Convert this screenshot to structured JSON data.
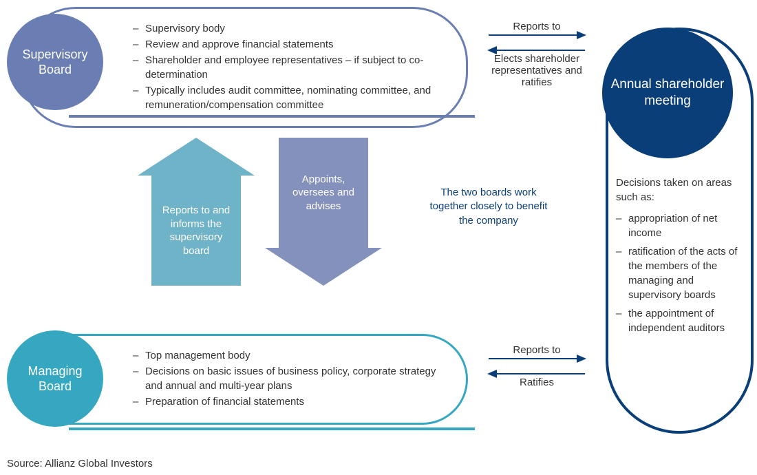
{
  "colors": {
    "supervisory_border": "#6a7eb3",
    "supervisory_fill": "#6a7eb3",
    "managing_border": "#35a7c0",
    "managing_fill": "#35a7c0",
    "annual_border": "#0a3e78",
    "annual_fill": "#0a3e78",
    "up_arrow_fill": "#6fb3c9",
    "down_arrow_fill": "#8591bd",
    "small_arrow": "#0a3e78",
    "note_text": "#0a3e78",
    "body_text": "#333333",
    "underline_sup": "#6a7eb3",
    "underline_man": "#35a7c0"
  },
  "supervisory": {
    "title": "Supervisory Board",
    "items": [
      "Supervisory body",
      "Review and approve financial statements",
      "Shareholder and employee representatives – if subject to co-determination",
      "Typically includes audit committee, nominating committee, and remuneration/compensation committee"
    ]
  },
  "managing": {
    "title": "Managing Board",
    "items": [
      "Top management body",
      "Decisions on basic issues of business policy, corporate strategy and annual and multi-year plans",
      "Preparation of financial statements"
    ]
  },
  "big_arrows": {
    "up_text": "Reports to and informs the supervisory board",
    "down_text": "Appoints, oversees and advises"
  },
  "rel_sup": {
    "top": "Reports to",
    "bottom": "Elects shareholder representatives and ratifies"
  },
  "rel_man": {
    "top": "Reports to",
    "bottom": "Ratifies"
  },
  "note": "The two boards work together closely to benefit the company",
  "annual": {
    "title": "Annual shareholder meeting",
    "intro": "Decisions taken on areas such as:",
    "items": [
      "appropriation of net income",
      "ratification of the acts of the members of the managing and supervisory boards",
      "the appointment of independent auditors"
    ]
  },
  "source": "Source: Allianz Global Investors"
}
